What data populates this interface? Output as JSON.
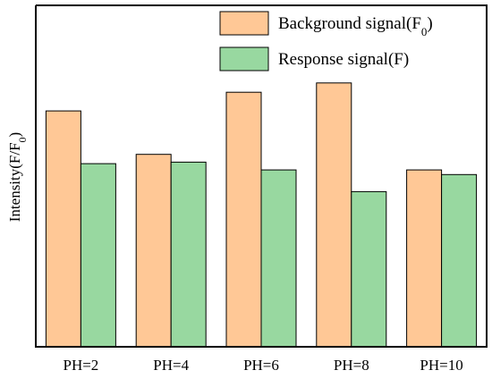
{
  "chart_data": {
    "type": "bar",
    "title": "",
    "xlabel": "",
    "ylabel": "Intensity(F/F",
    "ylabel_subscript": "0",
    "ylabel_suffix": ")",
    "categories": [
      "PH=2",
      "PH=4",
      "PH=6",
      "PH=8",
      "PH=10"
    ],
    "series": [
      {
        "name": "Background signal(F",
        "name_subscript": "0",
        "name_suffix": ")",
        "values": [
          0.76,
          0.62,
          0.82,
          0.85,
          0.57
        ],
        "color": "#FFC896"
      },
      {
        "name": "Response signal(F)",
        "name_subscript": "",
        "name_suffix": "",
        "values": [
          0.59,
          0.595,
          0.57,
          0.5,
          0.555
        ],
        "color": "#98D8A0"
      }
    ],
    "ylim": [
      0,
      1.1
    ],
    "y_ticks_shown": false,
    "grid": false,
    "legend_position": "top-right"
  }
}
